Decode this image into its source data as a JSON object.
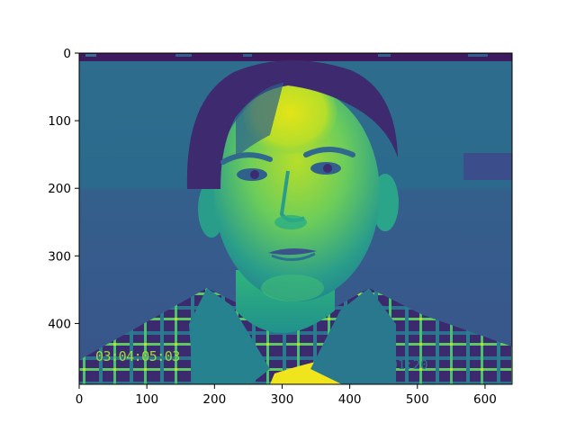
{
  "chart_data": {
    "type": "heatmap",
    "subtype": "imshow",
    "title": "",
    "xlabel": "",
    "ylabel": "",
    "colormap": "viridis",
    "colormap_stops": [
      "#440154",
      "#3b528b",
      "#21918c",
      "#5ec962",
      "#fde725"
    ],
    "image_content": "viridis-mapped grayscale video frame of a young person's face; dark top scan-line strip; plaid shirt; burned-in timecode overlay",
    "overlay_text": {
      "timecode_left": "03:04:05:03",
      "timecode_right": "=01:20"
    },
    "xlim": [
      0,
      640
    ],
    "ylim": [
      490,
      0
    ],
    "x_axis": {
      "ticks": [
        0,
        100,
        200,
        300,
        400,
        500,
        600
      ],
      "tick_labels": [
        "0",
        "100",
        "200",
        "300",
        "400",
        "500",
        "600"
      ]
    },
    "y_axis": {
      "inverted": true,
      "ticks": [
        0,
        100,
        200,
        300,
        400
      ],
      "tick_labels": [
        "0",
        "100",
        "200",
        "300",
        "400"
      ]
    },
    "grid": false,
    "legend": "none"
  }
}
